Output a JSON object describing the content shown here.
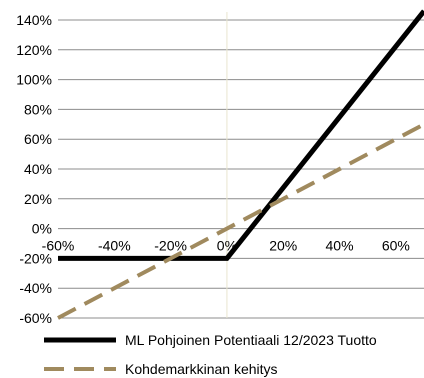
{
  "chart_data": {
    "type": "line",
    "x": [
      -0.6,
      -0.4,
      -0.2,
      0.0,
      0.2,
      0.4,
      0.6,
      0.7
    ],
    "series": [
      {
        "name": "ML Pohjoinen Potentiaali 12/2023 Tuotto",
        "color": "#000000",
        "style": "solid",
        "x": [
          -0.6,
          0.0,
          0.7
        ],
        "y": [
          -0.2,
          -0.2,
          1.46
        ]
      },
      {
        "name": "Kohdemarkkinan kehitys",
        "color": "#A08A5E",
        "style": "dashed",
        "x": [
          -0.6,
          0.7
        ],
        "y": [
          -0.6,
          0.7
        ]
      }
    ],
    "xticks": [
      -0.6,
      -0.4,
      -0.2,
      0.0,
      0.2,
      0.4,
      0.6
    ],
    "xtick_labels": [
      "-60%",
      "-40%",
      "-20%",
      "0%",
      "20%",
      "40%",
      "60%"
    ],
    "yticks": [
      1.4,
      1.2,
      1.0,
      0.8,
      0.6,
      0.4,
      0.2,
      0.0,
      -0.2,
      -0.4,
      -0.6
    ],
    "ytick_labels": [
      "140%",
      "120%",
      "100%",
      "80%",
      "60%",
      "40%",
      "20%",
      "0%",
      "-20%",
      "-40%",
      "-60%"
    ],
    "xlim": [
      -0.6,
      0.7
    ],
    "ylim": [
      -0.6,
      1.4
    ],
    "title": "",
    "xlabel": "",
    "ylabel": "",
    "grid": "horizontal",
    "legend_position": "bottom"
  }
}
